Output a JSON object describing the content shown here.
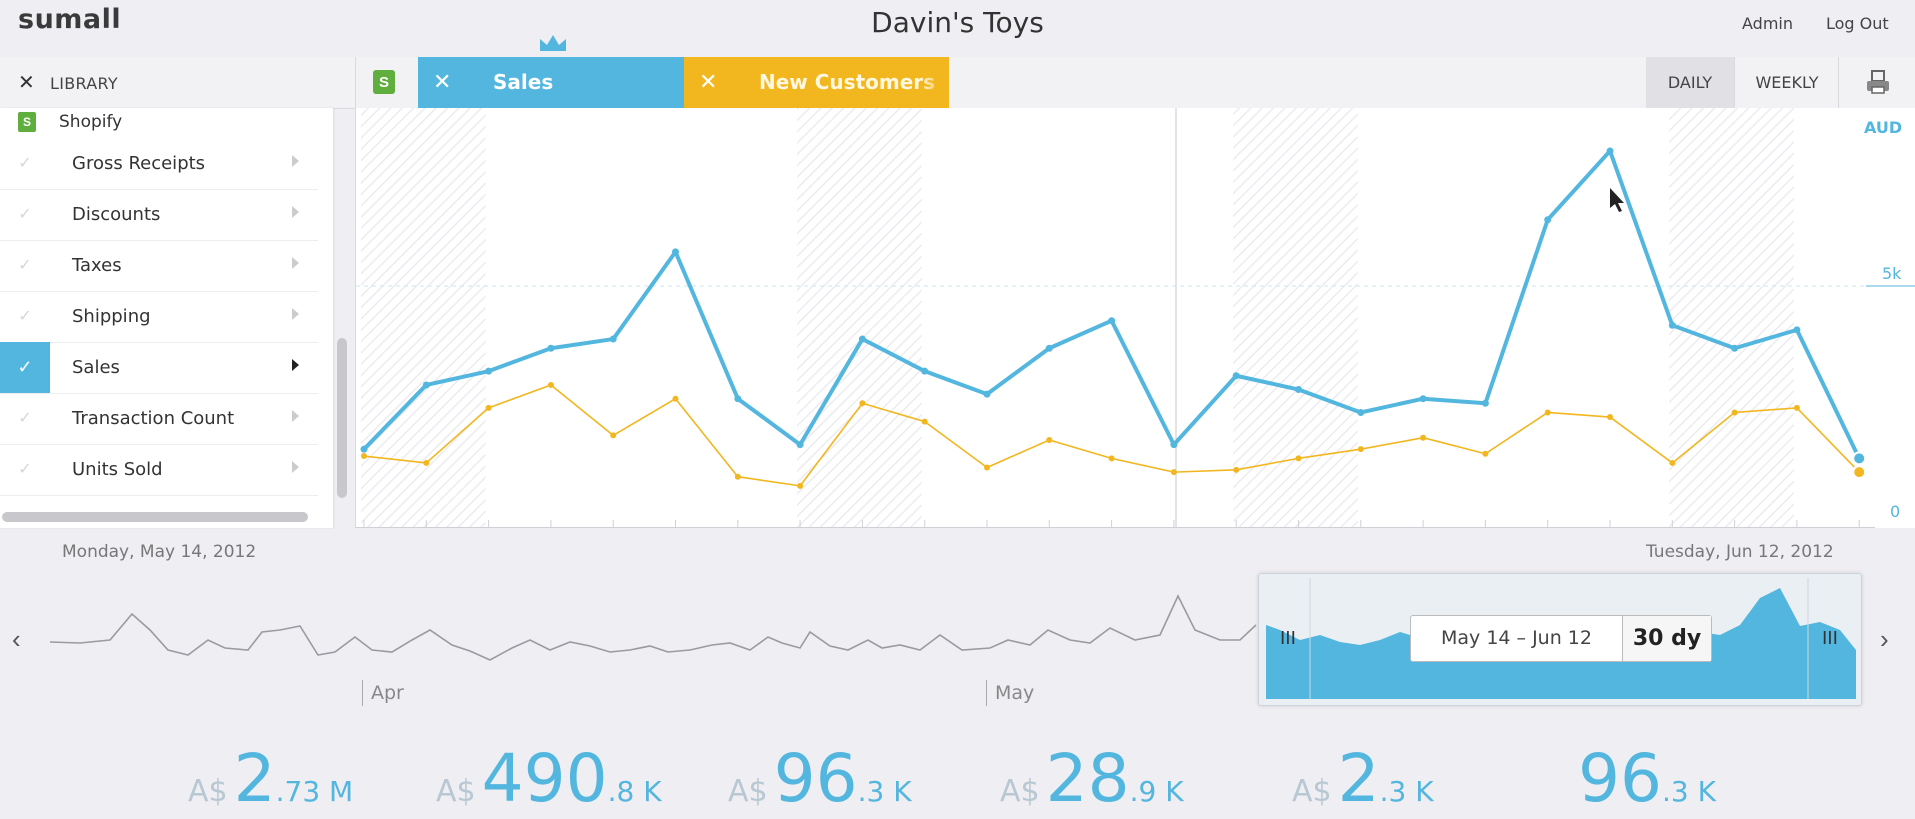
{
  "header": {
    "logo": "sumall",
    "title": "Davin's Toys",
    "admin": "Admin",
    "logout": "Log Out"
  },
  "toolbar": {
    "library_close": "✕",
    "library_label": "LIBRARY",
    "tabs": [
      {
        "close": "✕",
        "label": "Sales",
        "color": "#53b6df"
      },
      {
        "close": "✕",
        "label": "New Customers",
        "color": "#f2b61f"
      }
    ],
    "daily": "DAILY",
    "weekly": "WEEKLY"
  },
  "sidebar": {
    "source": "Shopify",
    "items": [
      {
        "label": "Gross Receipts",
        "checked": false
      },
      {
        "label": "Discounts",
        "checked": false
      },
      {
        "label": "Taxes",
        "checked": false
      },
      {
        "label": "Shipping",
        "checked": false
      },
      {
        "label": "Sales",
        "checked": true
      },
      {
        "label": "Transaction Count",
        "checked": false
      },
      {
        "label": "Units Sold",
        "checked": false
      }
    ]
  },
  "chart": {
    "currency_label": "AUD",
    "y_mid_label": "5k",
    "y_zero_label": "0",
    "start_date": "Monday, May 14, 2012",
    "end_date": "Tuesday, Jun 12, 2012"
  },
  "chart_data": {
    "type": "line",
    "ylim": [
      0,
      8500
    ],
    "series": [
      {
        "name": "Sales",
        "color": "#53b6df",
        "values": [
          1500,
          2900,
          3200,
          3700,
          3900,
          5800,
          2600,
          1600,
          3900,
          3200,
          2700,
          3700,
          4300,
          1600,
          3100,
          2800,
          2300,
          2600,
          2500,
          6500,
          8000,
          4200,
          3700,
          4100,
          1300
        ]
      },
      {
        "name": "New Customers",
        "color": "#f2b61f",
        "values": [
          1350,
          1200,
          2400,
          2900,
          1800,
          2600,
          900,
          700,
          2500,
          2100,
          1100,
          1700,
          1300,
          1000,
          1050,
          1300,
          1500,
          1750,
          1400,
          2300,
          2200,
          1200,
          2300,
          2400,
          1000
        ]
      }
    ]
  },
  "timeline": {
    "months": [
      "Apr",
      "May"
    ],
    "range_dates": "May 14 – Jun 12",
    "range_days": "30 dy",
    "left_handle": "III",
    "right_handle": "III"
  },
  "stats": [
    {
      "currency": "A$",
      "value": "2",
      "suffix": ".73 M"
    },
    {
      "currency": "A$",
      "value": "490",
      "suffix": ".8 K"
    },
    {
      "currency": "A$",
      "value": "96",
      "suffix": ".3 K"
    },
    {
      "currency": "A$",
      "value": "28",
      "suffix": ".9 K"
    },
    {
      "currency": "A$",
      "value": "2",
      "suffix": ".3 K"
    },
    {
      "currency": "",
      "value": "96",
      "suffix": ".3 K"
    }
  ]
}
